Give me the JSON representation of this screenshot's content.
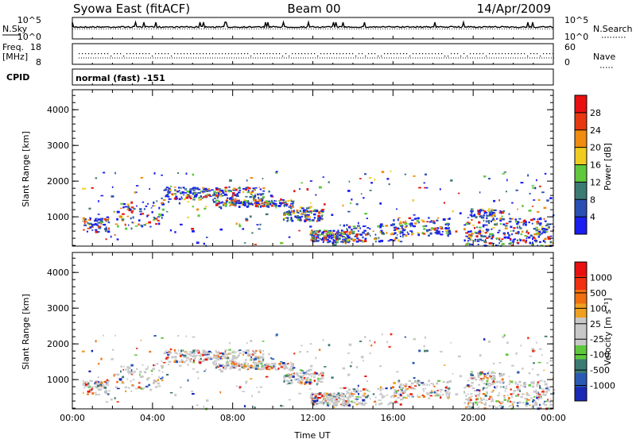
{
  "header": {
    "title_left": "Syowa East (fitACF)",
    "title_center": "Beam 00",
    "title_right": "14/Apr/2009"
  },
  "top_panels": {
    "nsky_label": "N.Sky",
    "nsky_ticks": [
      "10^5",
      "10^0"
    ],
    "nsearch_label": "N.Search",
    "nsearch_ticks": [
      "10^5",
      "10^0"
    ],
    "freq_label_line1": "Freq.",
    "freq_label_line2": "[MHz]",
    "freq_ticks": [
      "18",
      "8"
    ],
    "nave_label": "Nave",
    "nave_ticks": [
      "60",
      "0"
    ],
    "cpid_label": "CPID",
    "cpid_value": "normal (fast) -151"
  },
  "chart_data": [
    {
      "type": "heatmap",
      "name": "power",
      "ylabel": "Slant Range [km]",
      "yticks": [
        "1000",
        "2000",
        "3000",
        "4000"
      ],
      "ylim": [
        180,
        4560
      ],
      "xlim": [
        0,
        24
      ],
      "colorbar_label": "Power [dB]",
      "colorbar_ticks": [
        "4",
        "8",
        "12",
        "16",
        "20",
        "24",
        "28"
      ],
      "colorbar_colors": [
        "#1a1ef0",
        "#2a4fb4",
        "#3c7a74",
        "#5fc83c",
        "#f0cc20",
        "#f08c10",
        "#e83810",
        "#e81010"
      ]
    },
    {
      "type": "heatmap",
      "name": "velocity",
      "ylabel": "Slant Range [km]",
      "yticks": [
        "1000",
        "2000",
        "3000",
        "4000"
      ],
      "ylim": [
        180,
        4560
      ],
      "xlim": [
        0,
        24
      ],
      "xlabel": "Time UT",
      "xticks": [
        "00:00",
        "04:00",
        "08:00",
        "12:00",
        "16:00",
        "20:00",
        "00:00"
      ],
      "colorbar_label": "Velocity [m s⁻¹]",
      "colorbar_ticks": [
        "1000",
        "500",
        "100",
        "25",
        "-25",
        "-100",
        "-500",
        "-1000"
      ],
      "colorbar_colors": [
        "#1a2ab4",
        "#2a5ab4",
        "#3c7a74",
        "#5fc83c",
        "#c8c8c8",
        "#c8c8c8",
        "#f0a020",
        "#f07010",
        "#f03010",
        "#e81010"
      ]
    }
  ]
}
